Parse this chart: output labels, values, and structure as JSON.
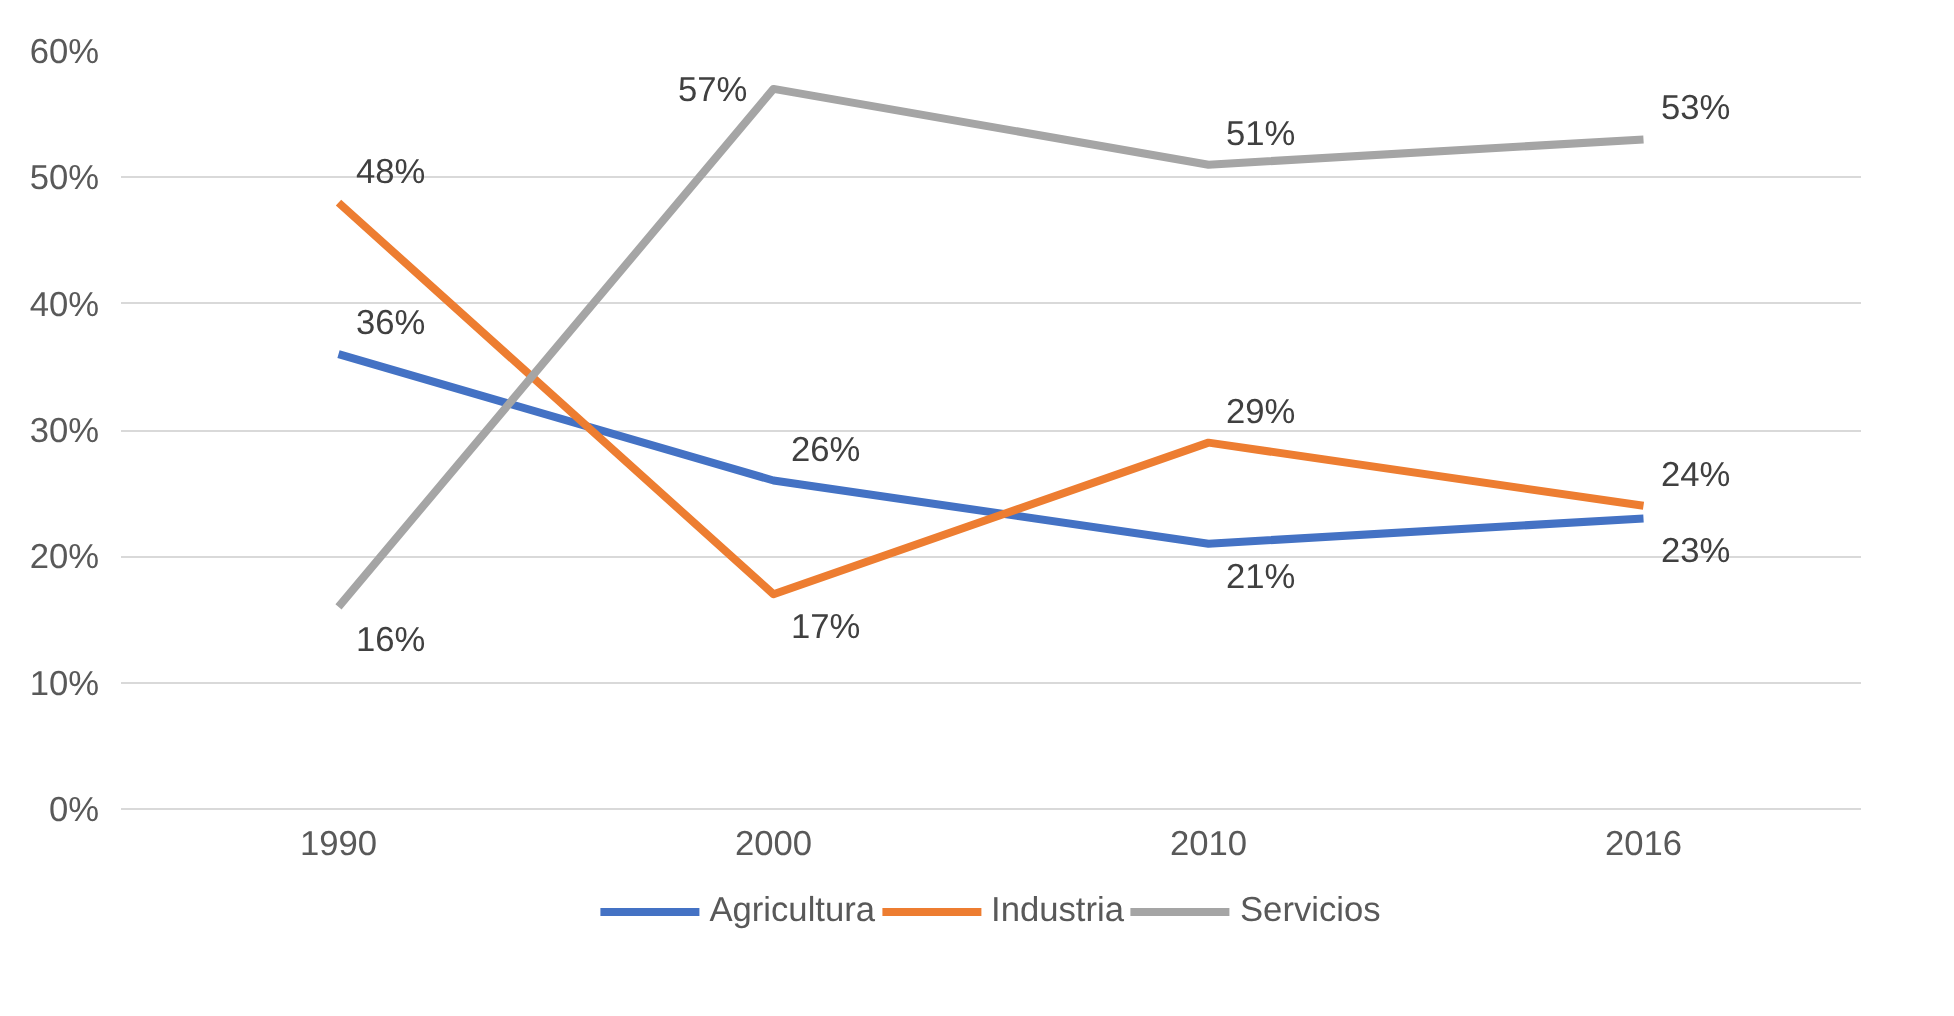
{
  "chart_data": {
    "type": "line",
    "categories": [
      "1990",
      "2000",
      "2010",
      "2016"
    ],
    "series": [
      {
        "name": "Agricultura",
        "color": "#4472c4",
        "values": [
          36,
          26,
          21,
          23
        ],
        "value_labels": [
          "36%",
          "26%",
          "21%",
          "23%"
        ]
      },
      {
        "name": "Industria",
        "color": "#ed7d31",
        "values": [
          48,
          17,
          29,
          24
        ],
        "value_labels": [
          "48%",
          "17%",
          "29%",
          "24%"
        ]
      },
      {
        "name": "Servicios",
        "color": "#a5a5a5",
        "values": [
          16,
          57,
          51,
          53
        ],
        "value_labels": [
          "16%",
          "57%",
          "51%",
          "53%"
        ]
      }
    ],
    "ylim": [
      0,
      60
    ],
    "yticks": [
      {
        "value": 0,
        "label": "0%"
      },
      {
        "value": 10,
        "label": "10%"
      },
      {
        "value": 20,
        "label": "20%"
      },
      {
        "value": 30,
        "label": "30%"
      },
      {
        "value": 40,
        "label": "40%"
      },
      {
        "value": 50,
        "label": "50%"
      },
      {
        "value": 60,
        "label": "60%"
      }
    ],
    "grid": "y",
    "legend": "bottom",
    "marker": "none",
    "line_style": "solid"
  }
}
